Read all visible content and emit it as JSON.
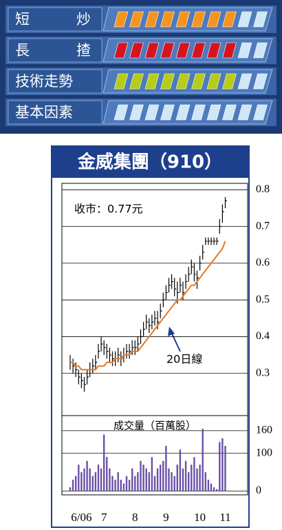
{
  "ratings": {
    "max": 10,
    "rows": [
      {
        "label": "短炒",
        "score": 8,
        "color": "#f7941d"
      },
      {
        "label": "長揸",
        "score": 8,
        "color": "#d7141e"
      },
      {
        "label": "技術走勢",
        "score": 8,
        "color": "#b5cc18"
      },
      {
        "label": "基本因素",
        "score": 0,
        "color": "#8fd0f0"
      }
    ]
  },
  "chart_data": {
    "type": "hlc",
    "title": "金威集團（910）",
    "annotation": "收市：0.77元",
    "ma_label": "20日線",
    "volume_label": "成交量（百萬股）",
    "categories": [
      null,
      null,
      null,
      null,
      "6/06",
      null,
      null,
      null,
      null,
      null,
      null,
      null,
      "7",
      null,
      null,
      null,
      null,
      null,
      null,
      null,
      null,
      null,
      null,
      "8",
      null,
      null,
      null,
      null,
      null,
      null,
      null,
      null,
      null,
      null,
      "9",
      null,
      null,
      null,
      null,
      null,
      null,
      null,
      null,
      null,
      null,
      null,
      "10",
      null,
      null,
      null,
      null,
      null,
      null,
      null,
      null,
      "11"
    ],
    "price": {
      "color": "#000000",
      "high": [
        0.35,
        0.34,
        0.33,
        0.31,
        0.3,
        0.29,
        0.31,
        0.33,
        0.34,
        0.35,
        0.38,
        0.4,
        0.39,
        0.38,
        0.37,
        0.36,
        0.36,
        0.37,
        0.36,
        0.37,
        0.38,
        0.38,
        0.39,
        0.39,
        0.4,
        0.42,
        0.44,
        0.46,
        0.45,
        0.46,
        0.47,
        0.47,
        0.49,
        0.52,
        0.54,
        0.56,
        0.57,
        0.56,
        0.55,
        0.56,
        0.55,
        0.57,
        0.59,
        0.61,
        0.6,
        0.58,
        0.62,
        0.65,
        0.67,
        0.67,
        0.67,
        0.67,
        0.67,
        0.72,
        0.76,
        0.78
      ],
      "low": [
        0.31,
        0.3,
        0.29,
        0.27,
        0.26,
        0.25,
        0.27,
        0.29,
        0.3,
        0.31,
        0.34,
        0.36,
        0.35,
        0.34,
        0.33,
        0.32,
        0.32,
        0.33,
        0.32,
        0.33,
        0.34,
        0.34,
        0.35,
        0.35,
        0.36,
        0.38,
        0.4,
        0.42,
        0.41,
        0.42,
        0.43,
        0.42,
        0.45,
        0.48,
        0.5,
        0.52,
        0.53,
        0.51,
        0.49,
        0.52,
        0.5,
        0.53,
        0.55,
        0.57,
        0.55,
        0.53,
        0.58,
        0.61,
        0.65,
        0.65,
        0.65,
        0.65,
        0.65,
        0.68,
        0.71,
        0.75
      ],
      "close": [
        0.33,
        0.32,
        0.31,
        0.29,
        0.28,
        0.27,
        0.29,
        0.31,
        0.32,
        0.33,
        0.36,
        0.38,
        0.37,
        0.36,
        0.35,
        0.34,
        0.34,
        0.35,
        0.34,
        0.35,
        0.36,
        0.36,
        0.37,
        0.37,
        0.38,
        0.4,
        0.42,
        0.44,
        0.43,
        0.44,
        0.45,
        0.44,
        0.47,
        0.5,
        0.52,
        0.54,
        0.55,
        0.53,
        0.52,
        0.54,
        0.52,
        0.55,
        0.57,
        0.59,
        0.57,
        0.56,
        0.6,
        0.63,
        0.66,
        0.66,
        0.66,
        0.66,
        0.66,
        0.7,
        0.74,
        0.77
      ]
    },
    "ma": {
      "color": "#e87722",
      "values": [
        0.33,
        0.33,
        0.32,
        0.32,
        0.31,
        0.31,
        0.31,
        0.31,
        0.31,
        0.31,
        0.32,
        0.32,
        0.32,
        0.33,
        0.33,
        0.33,
        0.34,
        0.34,
        0.34,
        0.35,
        0.35,
        0.35,
        0.36,
        0.36,
        0.36,
        0.37,
        0.38,
        0.39,
        0.4,
        0.41,
        0.42,
        0.43,
        0.44,
        0.45,
        0.46,
        0.47,
        0.48,
        0.49,
        0.5,
        0.5,
        0.51,
        0.52,
        0.53,
        0.54,
        0.54,
        0.55,
        0.56,
        0.57,
        0.58,
        0.59,
        0.6,
        0.61,
        0.62,
        0.63,
        0.64,
        0.66
      ]
    },
    "ylim": [
      0.185,
      0.81
    ],
    "yticks": [
      0.3,
      0.4,
      0.5,
      0.6,
      0.7,
      0.8
    ],
    "grid": true,
    "volume": {
      "color": "#6a4fa8",
      "values": [
        10,
        30,
        40,
        70,
        50,
        60,
        80,
        60,
        40,
        50,
        70,
        60,
        150,
        90,
        60,
        40,
        30,
        50,
        30,
        20,
        40,
        30,
        60,
        40,
        50,
        80,
        70,
        60,
        50,
        90,
        40,
        60,
        70,
        80,
        120,
        60,
        50,
        40,
        70,
        110,
        60,
        80,
        50,
        70,
        90,
        60,
        70,
        165,
        50,
        30,
        20,
        10,
        5,
        130,
        140,
        120
      ],
      "ylim": [
        -10,
        200
      ],
      "yticks": [
        0,
        100,
        160
      ]
    }
  }
}
